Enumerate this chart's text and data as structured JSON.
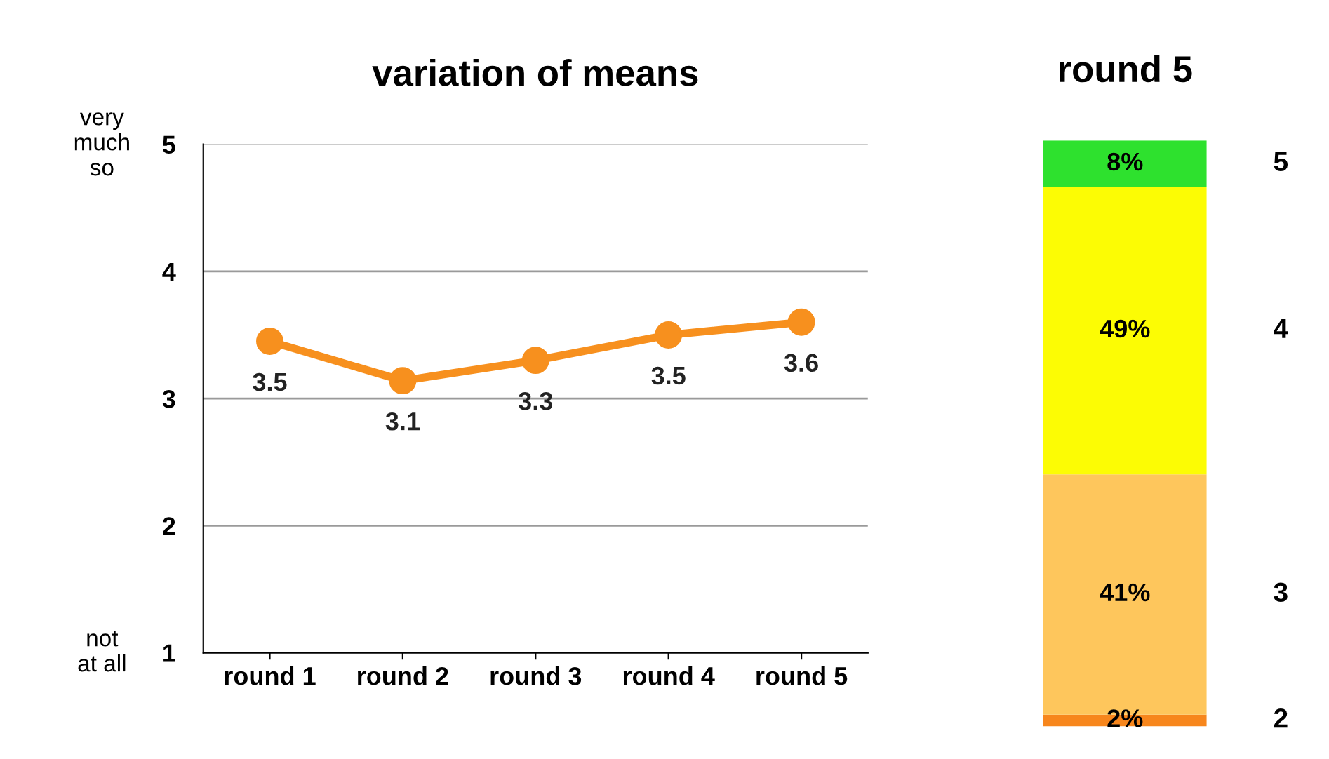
{
  "chart_data": [
    {
      "type": "line",
      "title": "variation of means",
      "categories": [
        "round 1",
        "round 2",
        "round 3",
        "round 4",
        "round 5"
      ],
      "series": [
        {
          "color": "#f7901e",
          "values": [
            3.45,
            3.14,
            3.3,
            3.5,
            3.6
          ],
          "value_labels": [
            "3.5",
            "3.1",
            "3.3",
            "3.5",
            "3.6"
          ]
        }
      ],
      "ylim": [
        1,
        5
      ],
      "yticks": [
        1,
        2,
        3,
        4,
        5
      ],
      "grid": "y",
      "marker": "circle",
      "line_style": "solid",
      "annotations": [
        "very\nmuch\nso",
        "not\nat all"
      ]
    },
    {
      "type": "bar",
      "title": "round 5",
      "categories": [
        null
      ],
      "stacked": true,
      "tick_labels": false,
      "series": [
        {
          "name": "2",
          "color": "#f7861c",
          "values": [
            2
          ],
          "value_labels": [
            "2%"
          ]
        },
        {
          "name": "3",
          "color": "#fec65c",
          "values": [
            41
          ],
          "value_labels": [
            "41%"
          ]
        },
        {
          "name": "4",
          "color": "#fcfc04",
          "values": [
            49
          ],
          "value_labels": [
            "49%"
          ]
        },
        {
          "name": "5",
          "color": "#2ee12e",
          "values": [
            8
          ],
          "value_labels": [
            "8%"
          ]
        }
      ]
    }
  ]
}
